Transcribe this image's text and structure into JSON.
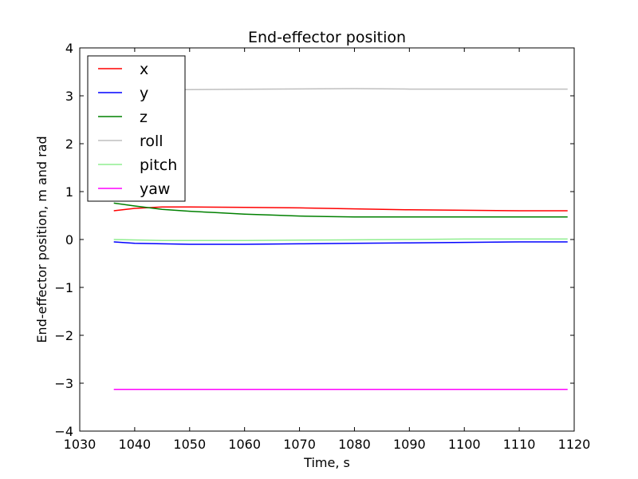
{
  "chart_data": {
    "type": "line",
    "title": "End-effector position",
    "xlabel": "Time, s",
    "ylabel": "End-effector position, m and rad",
    "xlim": [
      1030,
      1120
    ],
    "ylim": [
      -4,
      4
    ],
    "x_ticks": [
      1030,
      1040,
      1050,
      1060,
      1070,
      1080,
      1090,
      1100,
      1110,
      1120
    ],
    "y_ticks": [
      4,
      3,
      2,
      1,
      0,
      -1,
      -2,
      -3,
      -4
    ],
    "x_tick_labels": [
      "1030",
      "1040",
      "1050",
      "1060",
      "1070",
      "1080",
      "1090",
      "1100",
      "1110",
      "1120"
    ],
    "y_tick_labels": [
      "4",
      "3",
      "2",
      "1",
      "0",
      "−1",
      "−2",
      "−3",
      "−4"
    ],
    "grid": false,
    "legend_position": "top-left",
    "series": [
      {
        "name": "x",
        "color": "#ff0000",
        "points": [
          [
            1036.2,
            0.6
          ],
          [
            1040,
            0.65
          ],
          [
            1045,
            0.68
          ],
          [
            1050,
            0.68
          ],
          [
            1060,
            0.67
          ],
          [
            1070,
            0.66
          ],
          [
            1080,
            0.64
          ],
          [
            1090,
            0.62
          ],
          [
            1100,
            0.61
          ],
          [
            1110,
            0.6
          ],
          [
            1118.8,
            0.6
          ]
        ]
      },
      {
        "name": "y",
        "color": "#0000ff",
        "points": [
          [
            1036.2,
            -0.05
          ],
          [
            1040,
            -0.08
          ],
          [
            1045,
            -0.09
          ],
          [
            1050,
            -0.1
          ],
          [
            1060,
            -0.1
          ],
          [
            1070,
            -0.09
          ],
          [
            1080,
            -0.08
          ],
          [
            1090,
            -0.07
          ],
          [
            1100,
            -0.06
          ],
          [
            1110,
            -0.05
          ],
          [
            1118.8,
            -0.05
          ]
        ]
      },
      {
        "name": "z",
        "color": "#008000",
        "points": [
          [
            1036.2,
            0.76
          ],
          [
            1040,
            0.7
          ],
          [
            1045,
            0.63
          ],
          [
            1050,
            0.59
          ],
          [
            1055,
            0.56
          ],
          [
            1060,
            0.53
          ],
          [
            1065,
            0.51
          ],
          [
            1070,
            0.49
          ],
          [
            1075,
            0.48
          ],
          [
            1080,
            0.47
          ],
          [
            1090,
            0.47
          ],
          [
            1100,
            0.47
          ],
          [
            1110,
            0.47
          ],
          [
            1118.8,
            0.47
          ]
        ]
      },
      {
        "name": "roll",
        "color": "#bfbfbf",
        "points": [
          [
            1036.2,
            3.13
          ],
          [
            1050,
            3.13
          ],
          [
            1064,
            3.14
          ],
          [
            1080,
            3.15
          ],
          [
            1090,
            3.14
          ],
          [
            1100,
            3.14
          ],
          [
            1118.8,
            3.14
          ]
        ]
      },
      {
        "name": "pitch",
        "color": "#90ee90",
        "points": [
          [
            1036.2,
            0.0
          ],
          [
            1045,
            -0.02
          ],
          [
            1060,
            -0.02
          ],
          [
            1075,
            -0.01
          ],
          [
            1090,
            0.0
          ],
          [
            1100,
            0.01
          ],
          [
            1110,
            0.01
          ],
          [
            1118.8,
            0.01
          ]
        ]
      },
      {
        "name": "yaw",
        "color": "#ff00ff",
        "points": [
          [
            1036.2,
            -3.13
          ],
          [
            1060,
            -3.13
          ],
          [
            1090,
            -3.13
          ],
          [
            1118.8,
            -3.13
          ]
        ]
      }
    ]
  }
}
